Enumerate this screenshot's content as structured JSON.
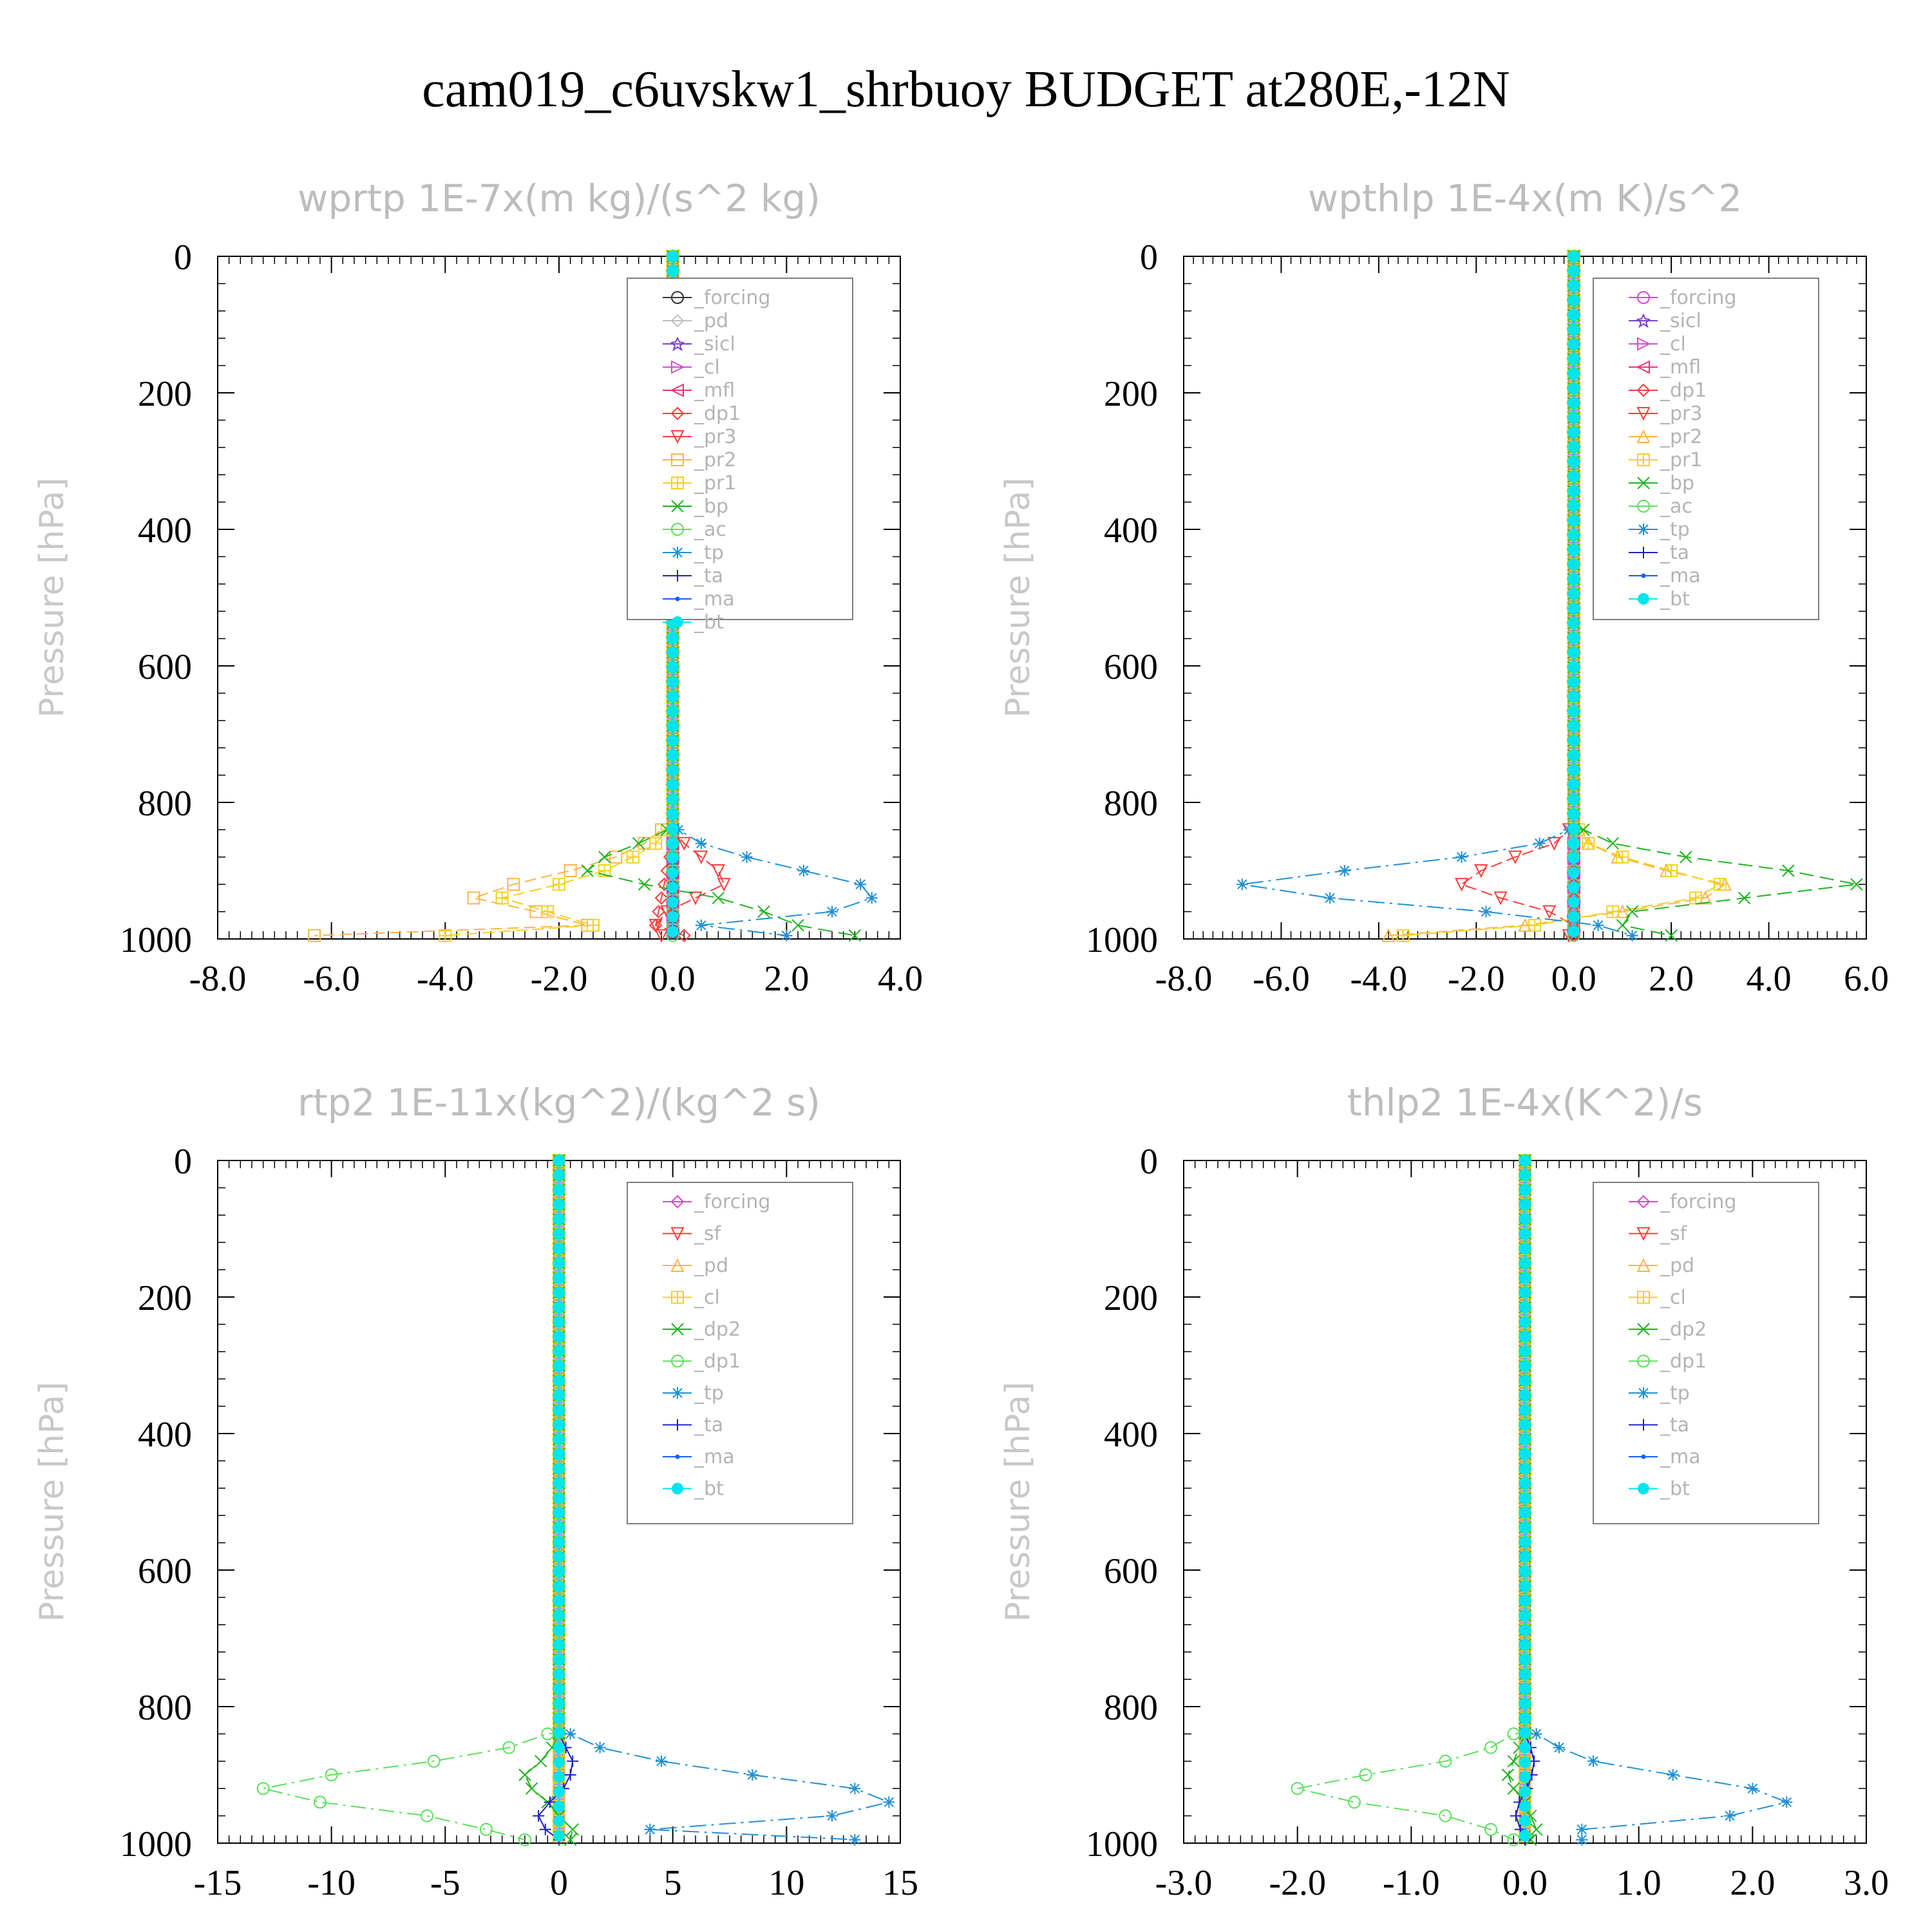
{
  "figure_title": "cam019_c6uvskw1_shrbuoy  BUDGET at280E,-12N",
  "colors": {
    "forcing_a": "#333333",
    "forcing": "#d946d0",
    "pd": "#c0c0c0",
    "sicl": "#7a3fd0",
    "cl_a": "#d04fd0",
    "mfl": "#e8337a",
    "dp1": "#ff3b3b",
    "pr3": "#ff3b3b",
    "pr2": "#ffb347",
    "pr1": "#f2d21b",
    "bp": "#1db31d",
    "ac": "#5ae05a",
    "tp": "#1f8fd6",
    "ta": "#2020c8",
    "ma": "#1060ff",
    "bt": "#00e5ee",
    "sf": "#ff3b3b",
    "cl_b": "#f2d21b",
    "dp2": "#1db31d",
    "dp1_b": "#5ae05a"
  },
  "chart_data": [
    {
      "type": "line",
      "title": "wprtp  1E-7x(m kg)/(s^2 kg)",
      "ylabel": "Pressure [hPa]",
      "xlim": [
        -8,
        4
      ],
      "ylim": [
        0,
        1000
      ],
      "xticks": [
        "-8.0",
        "-6.0",
        "-4.0",
        "-2.0",
        "0.0",
        "2.0",
        "4.0"
      ],
      "yticks": [
        "0",
        "200",
        "400",
        "600",
        "800",
        "1000"
      ],
      "legend_position": "top-right",
      "series": [
        {
          "name": "_forcing",
          "color": "forcing_a",
          "marker": "circle",
          "y": [
            0,
            990
          ],
          "x": [
            0,
            0
          ]
        },
        {
          "name": "_pd",
          "color": "pd",
          "marker": "diamond",
          "y": [
            0,
            990
          ],
          "x": [
            0,
            0
          ]
        },
        {
          "name": "_sicl",
          "color": "sicl",
          "marker": "star",
          "y": [
            0,
            990
          ],
          "x": [
            0,
            0
          ]
        },
        {
          "name": "_cl",
          "color": "cl_a",
          "marker": "triright",
          "y": [
            0,
            990
          ],
          "x": [
            0,
            0
          ]
        },
        {
          "name": "_mfl",
          "color": "mfl",
          "marker": "trileft",
          "y": [
            0,
            990
          ],
          "x": [
            0,
            0
          ]
        },
        {
          "name": "_dp1",
          "color": "dp1",
          "marker": "diamond",
          "y": [
            840,
            860,
            880,
            900,
            920,
            940,
            960,
            980,
            995
          ],
          "x": [
            0,
            0,
            -0.05,
            -0.1,
            -0.15,
            -0.2,
            -0.25,
            -0.3,
            0.2
          ]
        },
        {
          "name": "_pr3",
          "color": "pr3",
          "marker": "tridown",
          "y": [
            840,
            860,
            880,
            900,
            920,
            940,
            960,
            980,
            995
          ],
          "x": [
            0,
            0.2,
            0.5,
            0.8,
            0.9,
            0.4,
            -0.1,
            -0.3,
            -0.2
          ]
        },
        {
          "name": "_pr2",
          "color": "pr2",
          "marker": "square",
          "y": [
            840,
            860,
            880,
            900,
            920,
            940,
            960,
            980,
            995
          ],
          "x": [
            -0.2,
            -0.5,
            -1,
            -1.8,
            -2.8,
            -3.5,
            -2.4,
            -1.5,
            -6.3
          ]
        },
        {
          "name": "_pr1",
          "color": "pr1",
          "marker": "plus-square",
          "y": [
            840,
            860,
            880,
            900,
            920,
            940,
            960,
            980,
            995
          ],
          "x": [
            -0.1,
            -0.3,
            -0.7,
            -1.2,
            -2.0,
            -3.0,
            -2.2,
            -1.4,
            -4.0
          ]
        },
        {
          "name": "_bp",
          "color": "bp",
          "marker": "cross",
          "y": [
            840,
            860,
            880,
            900,
            920,
            940,
            960,
            980,
            995
          ],
          "x": [
            -0.1,
            -0.6,
            -1.2,
            -1.5,
            -0.5,
            0.8,
            1.6,
            2.2,
            3.2
          ]
        },
        {
          "name": "_ac",
          "color": "ac",
          "marker": "circle",
          "y": [
            840,
            860,
            880,
            900,
            920,
            940,
            960,
            980,
            995
          ],
          "x": [
            0,
            0,
            0,
            0,
            0,
            0,
            0,
            0,
            0
          ]
        },
        {
          "name": "_tp",
          "color": "tp",
          "marker": "asterisk",
          "y": [
            840,
            860,
            880,
            900,
            920,
            940,
            960,
            980,
            995
          ],
          "x": [
            0.1,
            0.5,
            1.3,
            2.3,
            3.3,
            3.5,
            2.8,
            0.5,
            2.0
          ]
        },
        {
          "name": "_ta",
          "color": "ta",
          "marker": "plus",
          "y": [
            0,
            990
          ],
          "x": [
            0,
            0
          ]
        },
        {
          "name": "_ma",
          "color": "ma",
          "marker": "dot",
          "y": [
            0,
            990
          ],
          "x": [
            0,
            0
          ]
        },
        {
          "name": "_bt",
          "color": "bt",
          "marker": "filled",
          "y": [
            0,
            990
          ],
          "x": [
            0,
            0
          ]
        }
      ]
    },
    {
      "type": "line",
      "title": "wpthlp  1E-4x(m K)/s^2",
      "ylabel": "Pressure [hPa]",
      "xlim": [
        -8,
        6
      ],
      "ylim": [
        0,
        1000
      ],
      "xticks": [
        "-8.0",
        "-6.0",
        "-4.0",
        "-2.0",
        "0.0",
        "2.0",
        "4.0",
        "6.0"
      ],
      "yticks": [
        "0",
        "200",
        "400",
        "600",
        "800",
        "1000"
      ],
      "legend_position": "top-right",
      "series": [
        {
          "name": "_forcing",
          "color": "forcing",
          "marker": "circle",
          "y": [
            0,
            990
          ],
          "x": [
            0,
            0
          ]
        },
        {
          "name": "_sicl",
          "color": "sicl",
          "marker": "star",
          "y": [
            0,
            990
          ],
          "x": [
            0,
            0
          ]
        },
        {
          "name": "_cl",
          "color": "cl_a",
          "marker": "triright",
          "y": [
            0,
            990
          ],
          "x": [
            0,
            0
          ]
        },
        {
          "name": "_mfl",
          "color": "mfl",
          "marker": "trileft",
          "y": [
            0,
            990
          ],
          "x": [
            0,
            0
          ]
        },
        {
          "name": "_dp1",
          "color": "dp1",
          "marker": "diamond",
          "y": [
            840,
            860,
            880,
            900,
            920,
            940,
            960,
            980,
            995
          ],
          "x": [
            0,
            0,
            0,
            0,
            0,
            0,
            0,
            0,
            0
          ]
        },
        {
          "name": "_pr3",
          "color": "pr3",
          "marker": "tridown",
          "y": [
            840,
            860,
            880,
            900,
            920,
            940,
            960,
            980,
            995
          ],
          "x": [
            -0.1,
            -0.4,
            -1.2,
            -1.9,
            -2.3,
            -1.5,
            -0.5,
            0,
            -0.1
          ]
        },
        {
          "name": "_pr2",
          "color": "pr2",
          "marker": "triangle",
          "y": [
            840,
            860,
            880,
            900,
            920,
            940,
            960,
            980,
            995
          ],
          "x": [
            0.1,
            0.3,
            0.9,
            1.9,
            3.1,
            2.7,
            1.0,
            -1.0,
            -3.8
          ]
        },
        {
          "name": "_pr1",
          "color": "pr1",
          "marker": "plus-square",
          "y": [
            840,
            860,
            880,
            900,
            920,
            940,
            960,
            980,
            995
          ],
          "x": [
            0.1,
            0.3,
            1.0,
            2.0,
            3.0,
            2.5,
            0.8,
            -0.8,
            -3.5
          ]
        },
        {
          "name": "_bp",
          "color": "bp",
          "marker": "cross",
          "y": [
            840,
            860,
            880,
            900,
            920,
            940,
            960,
            980,
            995
          ],
          "x": [
            0.2,
            0.8,
            2.3,
            4.4,
            5.8,
            3.5,
            1.2,
            1.0,
            2.0
          ]
        },
        {
          "name": "_ac",
          "color": "ac",
          "marker": "circle",
          "y": [
            840,
            860,
            880,
            900,
            920,
            940,
            960,
            980,
            995
          ],
          "x": [
            0,
            0,
            0,
            0,
            0,
            0,
            0,
            0,
            0
          ]
        },
        {
          "name": "_tp",
          "color": "tp",
          "marker": "asterisk",
          "y": [
            840,
            860,
            880,
            900,
            920,
            940,
            960,
            980,
            995
          ],
          "x": [
            -0.1,
            -0.7,
            -2.3,
            -4.7,
            -6.8,
            -5.0,
            -1.8,
            0.5,
            1.2
          ]
        },
        {
          "name": "_ta",
          "color": "ta",
          "marker": "plus",
          "y": [
            0,
            990
          ],
          "x": [
            0,
            0
          ]
        },
        {
          "name": "_ma",
          "color": "ma",
          "marker": "dot",
          "y": [
            0,
            990
          ],
          "x": [
            0,
            0
          ]
        },
        {
          "name": "_bt",
          "color": "bt",
          "marker": "filled",
          "y": [
            0,
            990
          ],
          "x": [
            0,
            0
          ]
        }
      ]
    },
    {
      "type": "line",
      "title": "rtp2  1E-11x(kg^2)/(kg^2 s)",
      "ylabel": "Pressure [hPa]",
      "xlim": [
        -15,
        15
      ],
      "ylim": [
        0,
        1000
      ],
      "xticks": [
        "-15",
        "-10",
        "-5",
        "0",
        "5",
        "10",
        "15"
      ],
      "yticks": [
        "0",
        "200",
        "400",
        "600",
        "800",
        "1000"
      ],
      "legend_position": "top-right",
      "series": [
        {
          "name": "_forcing",
          "color": "forcing",
          "marker": "diamond",
          "y": [
            0,
            990
          ],
          "x": [
            0,
            0
          ]
        },
        {
          "name": "_sf",
          "color": "sf",
          "marker": "tridown",
          "y": [
            0,
            990
          ],
          "x": [
            0,
            0
          ]
        },
        {
          "name": "_pd",
          "color": "pr2",
          "marker": "triangle",
          "y": [
            0,
            990
          ],
          "x": [
            0,
            0
          ]
        },
        {
          "name": "_cl",
          "color": "cl_b",
          "marker": "plus-square",
          "y": [
            0,
            990
          ],
          "x": [
            0,
            0
          ]
        },
        {
          "name": "_dp2",
          "color": "dp2",
          "marker": "cross",
          "y": [
            840,
            860,
            880,
            900,
            920,
            940,
            960,
            980,
            995
          ],
          "x": [
            0,
            -0.3,
            -0.8,
            -1.5,
            -1.2,
            -0.5,
            0,
            0.6,
            0.5
          ]
        },
        {
          "name": "_dp1",
          "color": "dp1_b",
          "marker": "circle",
          "y": [
            840,
            860,
            880,
            900,
            920,
            940,
            960,
            980,
            995
          ],
          "x": [
            -0.5,
            -2.2,
            -5.5,
            -10.0,
            -13.0,
            -10.5,
            -5.8,
            -3.2,
            -1.5
          ]
        },
        {
          "name": "_tp",
          "color": "tp",
          "marker": "asterisk",
          "y": [
            840,
            860,
            880,
            900,
            920,
            940,
            960,
            980,
            995
          ],
          "x": [
            0.5,
            1.8,
            4.5,
            8.5,
            13.0,
            14.5,
            12.0,
            4.0,
            13.0
          ]
        },
        {
          "name": "_ta",
          "color": "ta",
          "marker": "plus",
          "y": [
            840,
            860,
            880,
            900,
            920,
            940,
            960,
            980,
            995
          ],
          "x": [
            0,
            0.3,
            0.6,
            0.5,
            0.2,
            -0.4,
            -0.9,
            -0.6,
            0
          ]
        },
        {
          "name": "_ma",
          "color": "ma",
          "marker": "dot",
          "y": [
            0,
            990
          ],
          "x": [
            0,
            0
          ]
        },
        {
          "name": "_bt",
          "color": "bt",
          "marker": "filled",
          "y": [
            0,
            990
          ],
          "x": [
            0,
            0
          ]
        }
      ]
    },
    {
      "type": "line",
      "title": "thlp2  1E-4x(K^2)/s",
      "ylabel": "Pressure [hPa]",
      "xlim": [
        -3,
        3
      ],
      "ylim": [
        0,
        1000
      ],
      "xticks": [
        "-3.0",
        "-2.0",
        "-1.0",
        "0.0",
        "1.0",
        "2.0",
        "3.0"
      ],
      "yticks": [
        "0",
        "200",
        "400",
        "600",
        "800",
        "1000"
      ],
      "legend_position": "top-right",
      "series": [
        {
          "name": "_forcing",
          "color": "forcing",
          "marker": "diamond",
          "y": [
            0,
            990
          ],
          "x": [
            0,
            0
          ]
        },
        {
          "name": "_sf",
          "color": "sf",
          "marker": "tridown",
          "y": [
            0,
            990
          ],
          "x": [
            0,
            0
          ]
        },
        {
          "name": "_pd",
          "color": "pr2",
          "marker": "triangle",
          "y": [
            0,
            990
          ],
          "x": [
            0,
            0
          ]
        },
        {
          "name": "_cl",
          "color": "cl_b",
          "marker": "plus-square",
          "y": [
            0,
            990
          ],
          "x": [
            0,
            0
          ]
        },
        {
          "name": "_dp2",
          "color": "dp2",
          "marker": "cross",
          "y": [
            840,
            860,
            880,
            900,
            920,
            940,
            960,
            980,
            995
          ],
          "x": [
            0,
            -0.05,
            -0.1,
            -0.15,
            -0.1,
            0,
            0.05,
            0.1,
            0.05
          ]
        },
        {
          "name": "_dp1",
          "color": "dp1_b",
          "marker": "circle",
          "y": [
            840,
            860,
            880,
            900,
            920,
            940,
            960,
            980,
            995
          ],
          "x": [
            -0.1,
            -0.3,
            -0.7,
            -1.4,
            -2.0,
            -1.5,
            -0.7,
            -0.3,
            -0.1
          ]
        },
        {
          "name": "_tp",
          "color": "tp",
          "marker": "asterisk",
          "y": [
            840,
            860,
            880,
            900,
            920,
            940,
            960,
            980,
            995
          ],
          "x": [
            0.1,
            0.3,
            0.6,
            1.3,
            2.0,
            2.3,
            1.8,
            0.5,
            0.5
          ]
        },
        {
          "name": "_ta",
          "color": "ta",
          "marker": "plus",
          "y": [
            840,
            860,
            880,
            900,
            920,
            940,
            960,
            980,
            995
          ],
          "x": [
            0,
            0.05,
            0.08,
            0.06,
            0.02,
            -0.05,
            -0.08,
            -0.04,
            0
          ]
        },
        {
          "name": "_ma",
          "color": "ma",
          "marker": "dot",
          "y": [
            0,
            990
          ],
          "x": [
            0,
            0
          ]
        },
        {
          "name": "_bt",
          "color": "bt",
          "marker": "filled",
          "y": [
            0,
            990
          ],
          "x": [
            0,
            0
          ]
        }
      ]
    }
  ]
}
